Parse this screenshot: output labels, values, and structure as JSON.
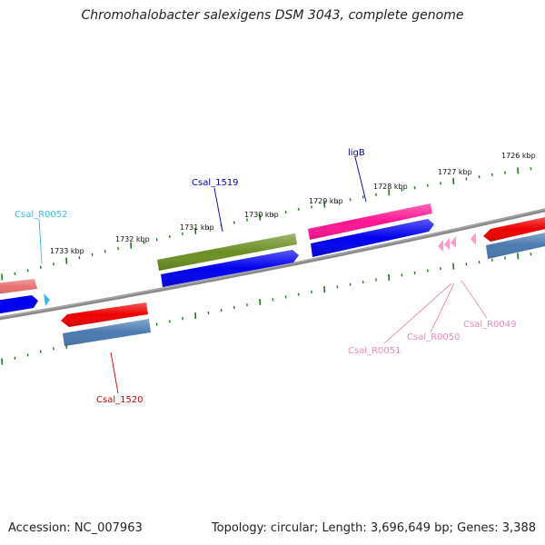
{
  "title": "Chromohalobacter salexigens DSM 3043, complete genome",
  "footer": {
    "accession": "Accession: NC_007963",
    "summary": "Topology: circular; Length: 3,696,649 bp; Genes: 3,388"
  },
  "colors": {
    "backbone": "#7a7a7a",
    "ticks": "#1e7a1e",
    "cds": "#0000ee",
    "steelblue": "#4a7ab0",
    "red": "#ee0000",
    "olive": "#6b8e23",
    "pink": "#ff1493",
    "salmon": "#ee7b7b",
    "trna": "#ff99cc",
    "cyan": "#33bbee"
  },
  "kbp_labels": [
    {
      "text": "1733 kbp"
    },
    {
      "text": "1732 kbp"
    },
    {
      "text": "1731 kbp"
    },
    {
      "text": "1730 kbp"
    },
    {
      "text": "1729 kbp"
    },
    {
      "text": "1728 kbp"
    },
    {
      "text": "1727 kbp"
    },
    {
      "text": "1726 kbp"
    }
  ],
  "gene_labels": [
    {
      "text": "Csal_R0052",
      "color": "#33bbee"
    },
    {
      "text": "Csal_1519",
      "color": "#0000aa"
    },
    {
      "text": "ligB",
      "color": "#0000aa"
    },
    {
      "text": "Csal_1520",
      "color": "#cc0000"
    },
    {
      "text": "Csal_R0051",
      "color": "#ee88bb"
    },
    {
      "text": "Csal_R0050",
      "color": "#ee88bb"
    },
    {
      "text": "Csal_R0049",
      "color": "#ee88bb"
    }
  ]
}
